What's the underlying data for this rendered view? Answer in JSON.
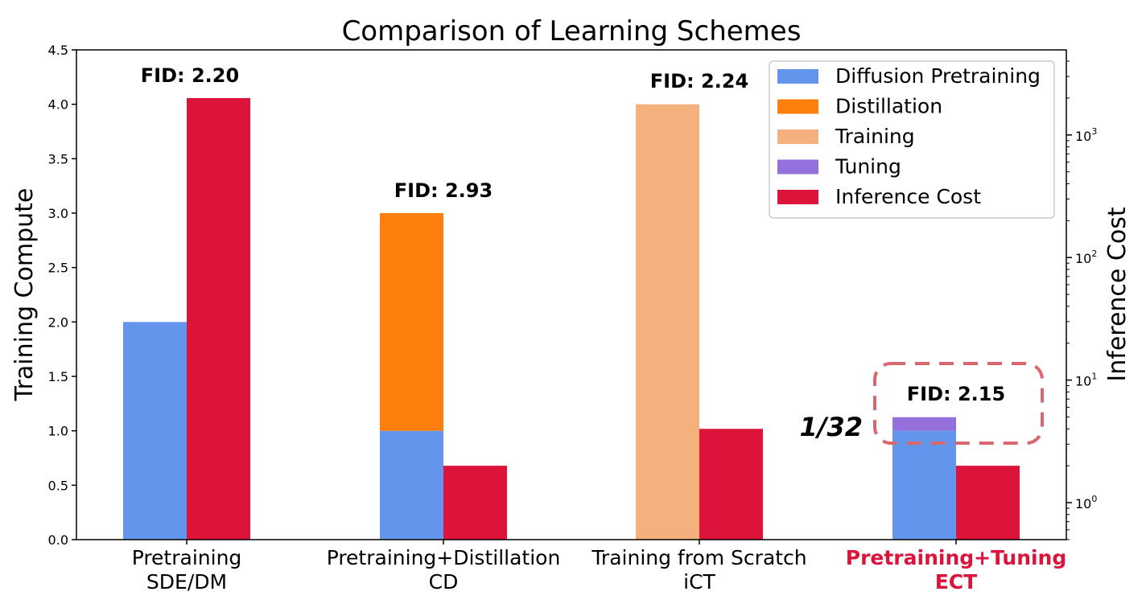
{
  "chart_data": {
    "type": "bar",
    "title": "Comparison of Learning Schemes",
    "ylabel": "Training Compute",
    "y2label": "Inference Cost",
    "ylim": [
      0,
      4.5
    ],
    "yticks": [
      "0.0",
      "0.5",
      "1.0",
      "1.5",
      "2.0",
      "2.5",
      "3.0",
      "3.5",
      "4.0",
      "4.5"
    ],
    "y2_scale": "log",
    "y2_ticks": [
      {
        "value": 1,
        "label": "10",
        "exp": "0"
      },
      {
        "value": 10,
        "label": "10",
        "exp": "1"
      },
      {
        "value": 100,
        "label": "10",
        "exp": "2"
      },
      {
        "value": 1000,
        "label": "10",
        "exp": "3"
      }
    ],
    "categories": [
      {
        "line1": "Pretraining",
        "line2": "SDE/DM",
        "highlight": false
      },
      {
        "line1": "Pretraining+Distillation",
        "line2": "CD",
        "highlight": false
      },
      {
        "line1": "Training from Scratch",
        "line2": "iCT",
        "highlight": false
      },
      {
        "line1": "Pretraining+Tuning",
        "line2": "ECT",
        "highlight": true
      }
    ],
    "series": [
      {
        "name": "Diffusion Pretraining",
        "color": "#6495ed",
        "values": [
          2.0,
          1.0,
          0,
          1.0
        ]
      },
      {
        "name": "Distillation",
        "color": "#ff7f0e",
        "values": [
          0,
          2.0,
          0,
          0
        ]
      },
      {
        "name": "Training",
        "color": "#f4b07d",
        "values": [
          0,
          0,
          4.0,
          0
        ]
      },
      {
        "name": "Tuning",
        "color": "#9370db",
        "values": [
          0,
          0,
          0,
          0.125
        ]
      },
      {
        "name": "Inference Cost",
        "color": "#dc143c",
        "values": [
          2000,
          2,
          4,
          2
        ],
        "axis": "right"
      }
    ],
    "fid_labels": [
      "FID: 2.20",
      "FID: 2.93",
      "FID: 2.24",
      "FID: 2.15"
    ],
    "annotation": "1/32",
    "highlight_color": "#dc143c",
    "legend_position": "upper right",
    "grid": false
  }
}
